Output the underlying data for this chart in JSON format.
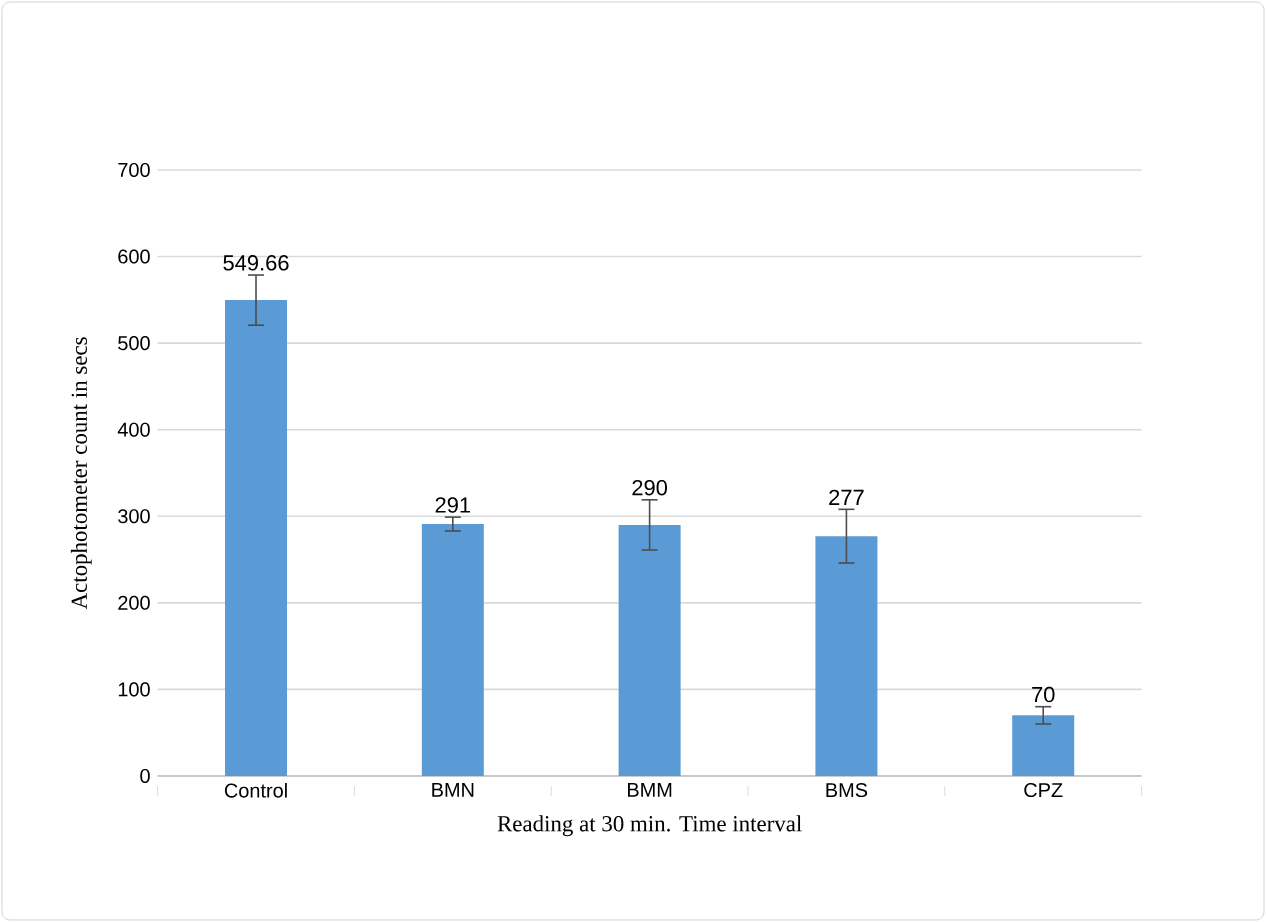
{
  "chart_data": {
    "type": "bar",
    "xlabel": "Reading at 30 min. Time interval",
    "ylabel": "Actophotometer count in secs",
    "categories": [
      "Control",
      "BMN",
      "BMM",
      "BMS",
      "CPZ"
    ],
    "values": [
      549.66,
      291,
      290,
      277,
      70
    ],
    "errors": [
      29,
      8,
      29,
      31,
      10
    ],
    "color": "#5b9bd5",
    "ylim": [
      0,
      700
    ],
    "yticks": [
      0,
      100,
      200,
      300,
      400,
      500,
      600,
      700
    ],
    "grid": "y",
    "data_labels": true
  }
}
